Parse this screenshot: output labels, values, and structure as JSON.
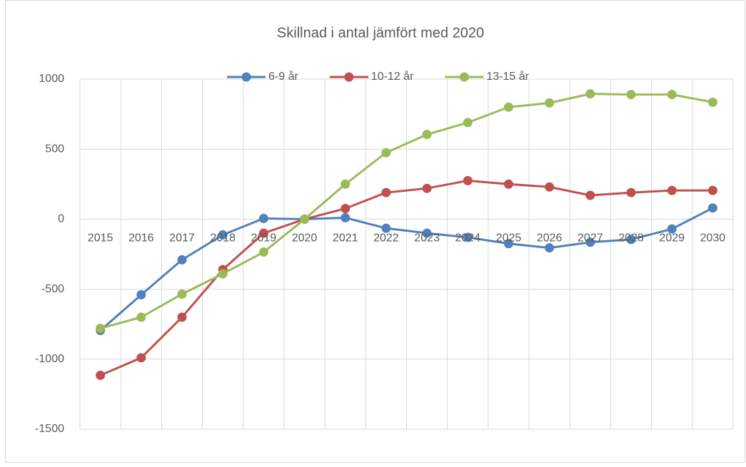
{
  "chart_data": {
    "type": "line",
    "title": "Skillnad i antal jämfört med 2020",
    "categories": [
      "2015",
      "2016",
      "2017",
      "2018",
      "2019",
      "2020",
      "2021",
      "2022",
      "2023",
      "2024",
      "2025",
      "2026",
      "2027",
      "2028",
      "2029",
      "2030"
    ],
    "series": [
      {
        "name": "6-9 år",
        "color": "#4f81bd",
        "values": [
          -795,
          -540,
          -290,
          -112,
          5,
          0,
          10,
          -65,
          -100,
          -130,
          -175,
          -205,
          -165,
          -145,
          -70,
          80
        ]
      },
      {
        "name": "10-12 år",
        "color": "#c0504d",
        "values": [
          -1115,
          -990,
          -700,
          -360,
          -100,
          0,
          76,
          190,
          220,
          275,
          250,
          230,
          170,
          190,
          205,
          205
        ]
      },
      {
        "name": "13-15 år",
        "color": "#9bbb59",
        "values": [
          -780,
          -700,
          -535,
          -390,
          -235,
          0,
          250,
          475,
          605,
          690,
          800,
          830,
          895,
          890,
          890,
          835
        ]
      }
    ],
    "ylim": [
      -1500,
      1000
    ],
    "yticks": [
      1000,
      500,
      0,
      -500,
      -1000,
      -1500
    ],
    "grid": true,
    "legend": "top"
  }
}
